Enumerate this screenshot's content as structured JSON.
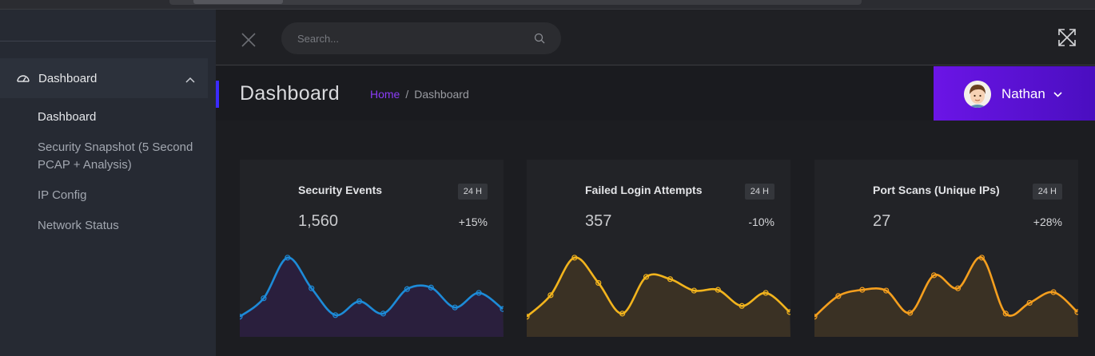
{
  "sidebar": {
    "parent_label": "Dashboard",
    "items": [
      {
        "label": "Dashboard",
        "active": true
      },
      {
        "label": "Security Snapshot (5 Second PCAP + Analysis)",
        "active": false
      },
      {
        "label": "IP Config",
        "active": false
      },
      {
        "label": "Network Status",
        "active": false
      }
    ]
  },
  "topbar": {
    "search_placeholder": "Search...",
    "icons": [
      "close-icon",
      "search-icon",
      "fullscreen-icon"
    ]
  },
  "header": {
    "title": "Dashboard",
    "breadcrumb_home": "Home",
    "breadcrumb_sep": "/",
    "breadcrumb_current": "Dashboard",
    "accent_color": "#3b2bff"
  },
  "user": {
    "name": "Nathan",
    "gradient": [
      "#6b15e6",
      "#4a0ec0"
    ]
  },
  "cards": [
    {
      "title": "Security Events",
      "badge": "24 H",
      "value": "1,560",
      "change": "+15%",
      "color": "#1d8bd8",
      "fill": "#2a1f3d"
    },
    {
      "title": "Failed Login Attempts",
      "badge": "24 H",
      "value": "357",
      "change": "-10%",
      "color": "#f2b41d",
      "fill": "#3a3124"
    },
    {
      "title": "Port Scans (Unique IPs)",
      "badge": "24 H",
      "value": "27",
      "change": "+28%",
      "color": "#f59f1e",
      "fill": "#3a3124"
    }
  ],
  "chart_data": [
    {
      "type": "area",
      "series": [
        {
          "values": [
            18,
            42,
            95,
            55,
            20,
            38,
            22,
            54,
            56,
            30,
            49,
            28
          ]
        }
      ],
      "ylim": [
        0,
        100
      ]
    },
    {
      "type": "area",
      "series": [
        {
          "values": [
            18,
            46,
            95,
            62,
            22,
            70,
            67,
            52,
            53,
            32,
            49,
            24
          ]
        }
      ],
      "ylim": [
        0,
        100
      ]
    },
    {
      "type": "area",
      "series": [
        {
          "values": [
            18,
            45,
            53,
            52,
            23,
            72,
            55,
            95,
            22,
            36,
            50,
            24
          ]
        }
      ],
      "ylim": [
        0,
        100
      ]
    }
  ]
}
